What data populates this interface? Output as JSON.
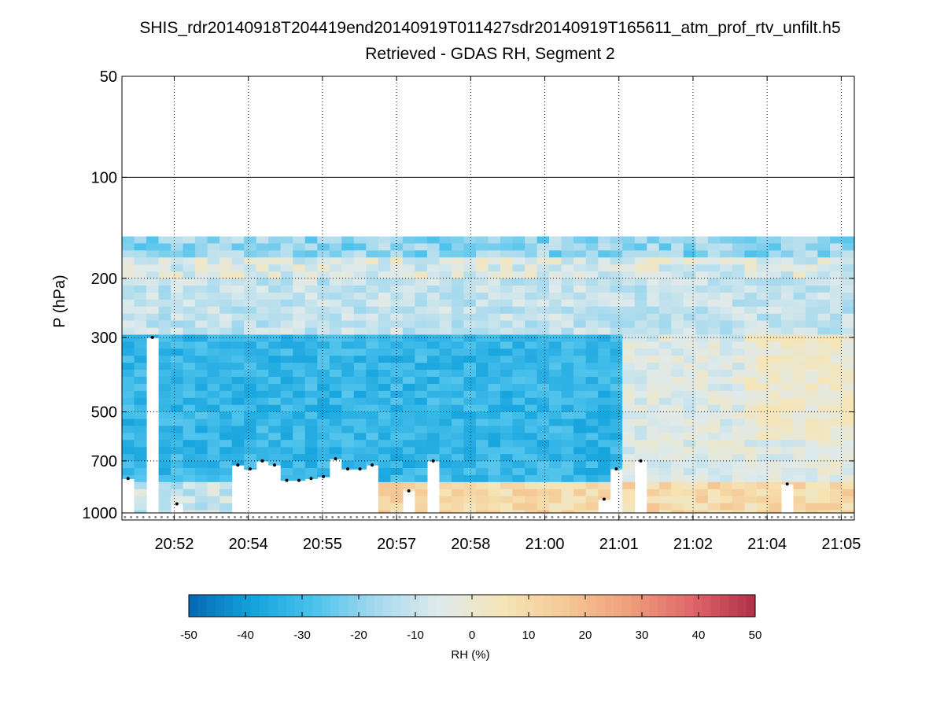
{
  "chart_data": {
    "type": "heatmap",
    "title": "SHIS_rdr20140918T204419end20140919T011427sdr20140919T165611_atm_prof_rtv_unfilt.h5",
    "subtitle": "Retrieved - GDAS RH, Segment 2",
    "ylabel": "P (hPa)",
    "xlabel": "",
    "y_scale": "log",
    "y_reversed": true,
    "ylim": [
      50,
      1050
    ],
    "y_ticks": [
      50,
      100,
      200,
      300,
      500,
      700,
      1000
    ],
    "y_tick_labels": [
      "50",
      "100",
      "200",
      "300",
      "500",
      "700",
      "1000"
    ],
    "x_ticks": [
      0.9,
      2.6,
      4.3,
      6.0,
      7.7,
      9.4,
      11.1,
      12.8,
      14.5,
      16.2
    ],
    "x_tick_labels": [
      "20:52",
      "20:54",
      "20:55",
      "20:57",
      "20:58",
      "21:00",
      "21:01",
      "21:02",
      "21:04",
      "21:05"
    ],
    "xlim": [
      -0.3,
      16.5
    ],
    "grid": true,
    "columns": 60,
    "top_pressure_hPa": 150,
    "surface_pressure_hPa": 1000,
    "values_description": "retrieved minus GDAS relative humidity, mostly -35 to +15 percent",
    "column_data_floor_hPa": [
      790,
      1000,
      300,
      1000,
      940,
      1000,
      1000,
      1000,
      1000,
      720,
      740,
      700,
      720,
      800,
      800,
      790,
      780,
      690,
      740,
      740,
      720,
      1000,
      1000,
      860,
      1000,
      700,
      1000,
      1000,
      1000,
      1000,
      1000,
      1000,
      1000,
      1000,
      1000,
      1000,
      1000,
      1000,
      1000,
      910,
      740,
      1000,
      700,
      1000,
      1000,
      1000,
      1000,
      1000,
      1000,
      1000,
      1000,
      1000,
      1000,
      1000,
      820,
      1000,
      1000,
      1000,
      1000,
      1000
    ],
    "colorbar": {
      "label": "RH (%)",
      "min": -50,
      "max": 50,
      "ticks": [
        -50,
        -40,
        -30,
        -20,
        -10,
        0,
        10,
        20,
        30,
        40,
        50
      ],
      "tick_labels": [
        "-50",
        "-40",
        "-30",
        "-20",
        "-10",
        "0",
        "10",
        "20",
        "30",
        "40",
        "50"
      ],
      "colors": [
        "#0567b2",
        "#13a2dd",
        "#4cc2ec",
        "#a7daee",
        "#dfeaeb",
        "#f6e5b6",
        "#f5c895",
        "#ef9e7c",
        "#e0666a",
        "#b02f48"
      ]
    }
  }
}
